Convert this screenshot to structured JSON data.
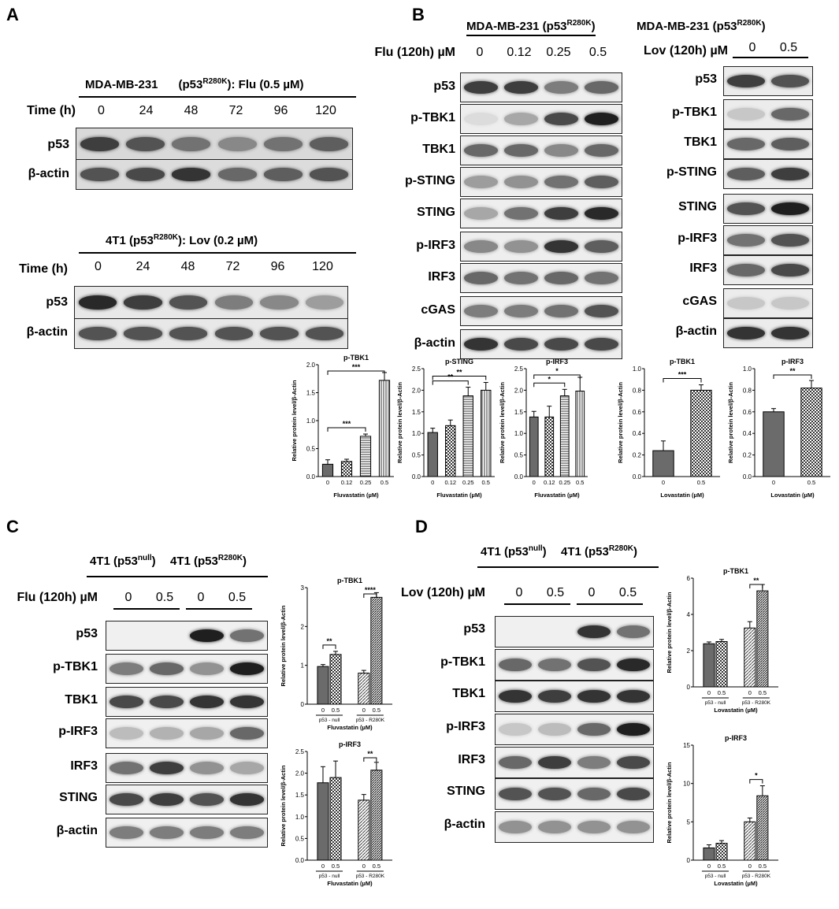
{
  "panels": [
    "A",
    "B",
    "C",
    "D"
  ],
  "A": {
    "top": {
      "header": "MDA-MB-231",
      "header2": "(p53",
      "sup": "R280K",
      "header3": "): Flu (0.5 µM)",
      "time_label": "Time (h)",
      "times": [
        "0",
        "24",
        "48",
        "72",
        "96",
        "120"
      ],
      "rows": [
        "p53",
        "β-actin"
      ],
      "intensity": {
        "p53": [
          0.8,
          0.7,
          0.55,
          0.45,
          0.55,
          0.65
        ],
        "β-actin": [
          0.7,
          0.75,
          0.85,
          0.6,
          0.65,
          0.7
        ]
      }
    },
    "bottom": {
      "header": "4T1 (p53",
      "sup": "R280K",
      "header3": "): Lov (0.2 µM)",
      "time_label": "Time (h)",
      "times": [
        "0",
        "24",
        "48",
        "72",
        "96",
        "120"
      ],
      "rows": [
        "p53",
        "β-actin"
      ],
      "intensity": {
        "p53": [
          0.9,
          0.8,
          0.7,
          0.5,
          0.45,
          0.35
        ],
        "β-actin": [
          0.7,
          0.7,
          0.7,
          0.7,
          0.7,
          0.7
        ]
      }
    }
  },
  "B": {
    "left": {
      "header": "MDA-MB-231 (p53",
      "sup": "R280K",
      "header3": ")",
      "treat_label": "Flu (120h) µM",
      "doses": [
        "0",
        "0.12",
        "0.25",
        "0.5"
      ],
      "rows": [
        "p53",
        "p-TBK1",
        "TBK1",
        "p-STING",
        "STING",
        "p-IRF3",
        "IRF3",
        "cGAS",
        "β-actin"
      ],
      "intensity": {
        "p53": [
          0.8,
          0.8,
          0.5,
          0.6
        ],
        "p-TBK1": [
          0.05,
          0.3,
          0.75,
          0.95
        ],
        "TBK1": [
          0.6,
          0.6,
          0.45,
          0.6
        ],
        "p-STING": [
          0.35,
          0.4,
          0.55,
          0.65
        ],
        "STING": [
          0.3,
          0.55,
          0.8,
          0.9
        ],
        "p-IRF3": [
          0.45,
          0.4,
          0.85,
          0.65
        ],
        "IRF3": [
          0.6,
          0.55,
          0.6,
          0.55
        ],
        "cGAS": [
          0.5,
          0.5,
          0.55,
          0.7
        ],
        "β-actin": [
          0.85,
          0.75,
          0.75,
          0.75
        ]
      }
    },
    "right": {
      "header": "MDA-MB-231 (p53",
      "sup": "R280K",
      "header3": ")",
      "treat_label": "Lov (120h) µM",
      "doses": [
        "0",
        "0.5"
      ],
      "rows": [
        "p53",
        "p-TBK1",
        "TBK1",
        "p-STING",
        "STING",
        "p-IRF3",
        "IRF3",
        "cGAS",
        "β-actin"
      ],
      "intensity": {
        "p53": [
          0.8,
          0.7
        ],
        "p-TBK1": [
          0.15,
          0.6
        ],
        "TBK1": [
          0.6,
          0.65
        ],
        "p-STING": [
          0.65,
          0.8
        ],
        "STING": [
          0.7,
          0.95
        ],
        "p-IRF3": [
          0.55,
          0.7
        ],
        "IRF3": [
          0.6,
          0.75
        ],
        "cGAS": [
          0.15,
          0.15
        ],
        "β-actin": [
          0.85,
          0.85
        ]
      }
    }
  },
  "C": {
    "group1": "4T1 (p53",
    "g1sup": "null",
    "g1end": ")",
    "group2": "4T1 (p53",
    "g2sup": "R280K",
    "g2end": ")",
    "treat_label": "Flu (120h) µM",
    "doses": [
      "0",
      "0.5",
      "0",
      "0.5"
    ],
    "rows": [
      "p53",
      "p-TBK1",
      "TBK1",
      "p-IRF3",
      "IRF3",
      "STING",
      "β-actin"
    ],
    "intensity": {
      "p53": [
        0,
        0,
        0.95,
        0.55
      ],
      "p-TBK1": [
        0.5,
        0.6,
        0.4,
        0.95
      ],
      "TBK1": [
        0.75,
        0.75,
        0.85,
        0.85
      ],
      "p-IRF3": [
        0.2,
        0.25,
        0.3,
        0.6
      ],
      "IRF3": [
        0.55,
        0.8,
        0.4,
        0.3
      ],
      "STING": [
        0.75,
        0.8,
        0.7,
        0.85
      ],
      "β-actin": [
        0.5,
        0.5,
        0.5,
        0.5
      ]
    }
  },
  "D": {
    "group1": "4T1 (p53",
    "g1sup": "null",
    "g1end": ")",
    "group2": "4T1 (p53",
    "g2sup": "R280K",
    "g2end": ")",
    "treat_label": "Lov (120h) µM",
    "doses": [
      "0",
      "0.5",
      "0",
      "0.5"
    ],
    "rows": [
      "p53",
      "p-TBK1",
      "TBK1",
      "p-IRF3",
      "IRF3",
      "STING",
      "β-actin"
    ],
    "intensity": {
      "p53": [
        0,
        0,
        0.85,
        0.55
      ],
      "p-TBK1": [
        0.6,
        0.55,
        0.7,
        0.9
      ],
      "TBK1": [
        0.85,
        0.8,
        0.85,
        0.85
      ],
      "p-IRF3": [
        0.15,
        0.2,
        0.6,
        0.95
      ],
      "IRF3": [
        0.6,
        0.8,
        0.5,
        0.75
      ],
      "STING": [
        0.7,
        0.7,
        0.6,
        0.75
      ],
      "β-actin": [
        0.4,
        0.4,
        0.4,
        0.4
      ]
    }
  },
  "chart_data": [
    {
      "type": "bar",
      "title": "p-TBK1",
      "categories": [
        "0",
        "0.12",
        "0.25",
        "0.5"
      ],
      "values": [
        0.22,
        0.27,
        0.72,
        1.72
      ],
      "errors": [
        0.08,
        0.04,
        0.04,
        0.14
      ],
      "xlabel": "Fluvastatin (µM)",
      "ylabel": "Relative protein level/β-Actin",
      "ylim": [
        0,
        2
      ],
      "yticks": [
        "0.0",
        "0.5",
        "1.0",
        "1.5",
        "2.0"
      ],
      "sig": [
        {
          "from": 0,
          "to": 2,
          "label": "***"
        },
        {
          "from": 0,
          "to": 3,
          "label": "***"
        }
      ]
    },
    {
      "type": "bar",
      "title": "p-STING",
      "categories": [
        "0",
        "0.12",
        "0.25",
        "0.5"
      ],
      "values": [
        1.02,
        1.18,
        1.87,
        2.0
      ],
      "errors": [
        0.1,
        0.13,
        0.2,
        0.18
      ],
      "xlabel": "Fluvastatin (µM)",
      "ylabel": "Relative protein level/β-Actin",
      "ylim": [
        0,
        2.5
      ],
      "yticks": [
        "0.0",
        "0.5",
        "1.0",
        "1.5",
        "2.0",
        "2.5"
      ],
      "sig": [
        {
          "from": 0,
          "to": 2,
          "label": "**"
        },
        {
          "from": 0,
          "to": 3,
          "label": "**"
        }
      ]
    },
    {
      "type": "bar",
      "title": "p-IRF3",
      "categories": [
        "0",
        "0.12",
        "0.25",
        "0.5"
      ],
      "values": [
        1.38,
        1.38,
        1.87,
        1.98
      ],
      "errors": [
        0.13,
        0.25,
        0.15,
        0.32
      ],
      "xlabel": "Fluvastatin (µM)",
      "ylabel": "Relative protein level/β-Actin",
      "ylim": [
        0,
        2.5
      ],
      "yticks": [
        "0.0",
        "0.5",
        "1.0",
        "1.5",
        "2.0",
        "2.5"
      ],
      "sig": [
        {
          "from": 0,
          "to": 2,
          "label": "*"
        },
        {
          "from": 0,
          "to": 3,
          "label": "*"
        }
      ]
    },
    {
      "type": "bar",
      "title": "p-TBK1",
      "categories": [
        "0",
        "0.5"
      ],
      "values": [
        0.24,
        0.8
      ],
      "errors": [
        0.09,
        0.05
      ],
      "xlabel": "Lovastatin (µM)",
      "ylabel": "Relative protein level/β-Actin",
      "ylim": [
        0,
        1.0
      ],
      "yticks": [
        "0.0",
        "0.2",
        "0.4",
        "0.6",
        "0.8",
        "1.0"
      ],
      "sig": [
        {
          "from": 0,
          "to": 1,
          "label": "***"
        }
      ]
    },
    {
      "type": "bar",
      "title": "p-IRF3",
      "categories": [
        "0",
        "0.5"
      ],
      "values": [
        0.6,
        0.82
      ],
      "errors": [
        0.03,
        0.07
      ],
      "xlabel": "Lovastatin (µM)",
      "ylabel": "Relative protein level/β-Actin",
      "ylim": [
        0,
        1.0
      ],
      "yticks": [
        "0.0",
        "0.2",
        "0.4",
        "0.6",
        "0.8",
        "1.0"
      ],
      "sig": [
        {
          "from": 0,
          "to": 1,
          "label": "**"
        }
      ]
    },
    {
      "type": "bar",
      "title": "p-TBK1",
      "categories": [
        "0",
        "0.5",
        "0",
        "0.5"
      ],
      "groups": [
        "p53 - null",
        "p53 - R280K"
      ],
      "values": [
        0.97,
        1.28,
        0.8,
        2.75
      ],
      "errors": [
        0.05,
        0.08,
        0.07,
        0.12
      ],
      "xlabel": "Fluvastatin (µM)",
      "ylabel": "Relative protein level/β-Actin",
      "ylim": [
        0,
        3
      ],
      "yticks": [
        "0",
        "1",
        "2",
        "3"
      ],
      "sig": [
        {
          "from": 0,
          "to": 1,
          "label": "**"
        },
        {
          "from": 2,
          "to": 3,
          "label": "****"
        }
      ]
    },
    {
      "type": "bar",
      "title": "p-IRF3",
      "categories": [
        "0",
        "0.5",
        "0",
        "0.5"
      ],
      "groups": [
        "p53 - null",
        "p53 - R280K"
      ],
      "values": [
        1.78,
        1.9,
        1.38,
        2.07
      ],
      "errors": [
        0.37,
        0.38,
        0.13,
        0.18
      ],
      "xlabel": "Fluvastatin (µM)",
      "ylabel": "Relative protein level/β-Actin",
      "ylim": [
        0,
        2.5
      ],
      "yticks": [
        "0.0",
        "0.5",
        "1.0",
        "1.5",
        "2.0",
        "2.5"
      ],
      "sig": [
        {
          "from": 2,
          "to": 3,
          "label": "**"
        }
      ]
    },
    {
      "type": "bar",
      "title": "p-TBK1",
      "categories": [
        "0",
        "0.5",
        "0",
        "0.5"
      ],
      "groups": [
        "p53 - null",
        "p53 - R280K"
      ],
      "values": [
        2.38,
        2.5,
        3.25,
        5.3
      ],
      "errors": [
        0.1,
        0.12,
        0.35,
        0.35
      ],
      "xlabel": "Lovastatin (µM)",
      "ylabel": "Relative protein level/β-Actin",
      "ylim": [
        0,
        6
      ],
      "yticks": [
        "0",
        "2",
        "4",
        "6"
      ],
      "sig": [
        {
          "from": 2,
          "to": 3,
          "label": "**"
        }
      ]
    },
    {
      "type": "bar",
      "title": "p-IRF3",
      "categories": [
        "0",
        "0.5",
        "0",
        "0.5"
      ],
      "groups": [
        "p53 - null",
        "p53 - R280K"
      ],
      "values": [
        1.6,
        2.2,
        5.0,
        8.4
      ],
      "errors": [
        0.4,
        0.35,
        0.5,
        1.3
      ],
      "xlabel": "Lovastatin (µM)",
      "ylabel": "Relative protein level/β-Actin",
      "ylim": [
        0,
        15
      ],
      "yticks": [
        "0",
        "5",
        "10",
        "15"
      ],
      "sig": [
        {
          "from": 2,
          "to": 3,
          "label": "*"
        }
      ]
    }
  ]
}
